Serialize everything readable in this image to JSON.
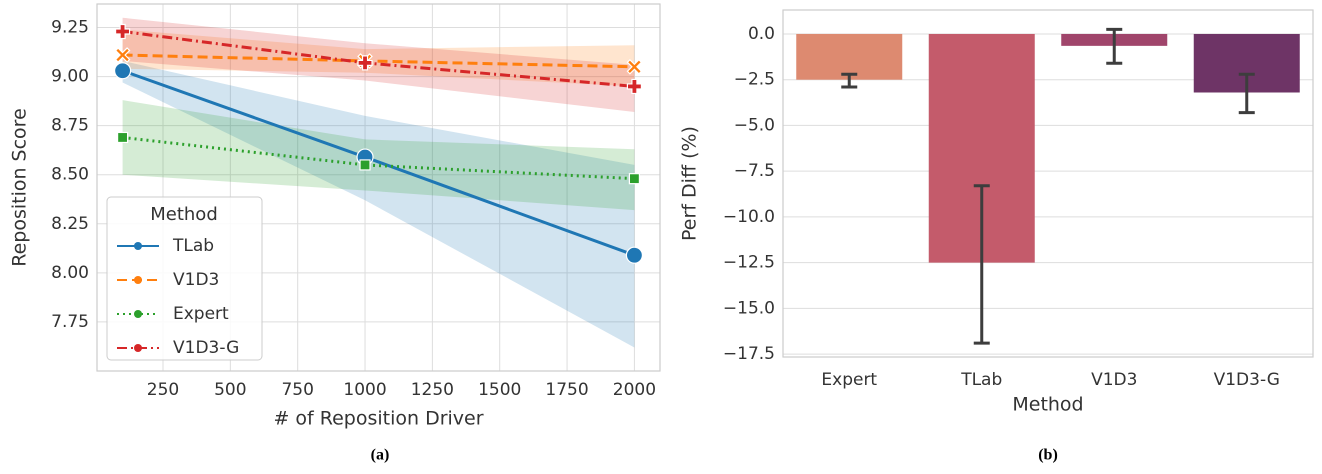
{
  "chart_data": [
    {
      "type": "line",
      "caption": "(a)",
      "x_label": "# of Reposition Driver",
      "y_label": "Reposition Score",
      "x": [
        100,
        1000,
        2000
      ],
      "xlim": [
        5,
        2095
      ],
      "xticks": [
        250,
        500,
        750,
        1000,
        1250,
        1500,
        1750,
        2000
      ],
      "ylim": [
        7.5,
        9.37
      ],
      "yticks": [
        {
          "value": 7.75,
          "label": "7.75"
        },
        {
          "value": 8.0,
          "label": "8.00"
        },
        {
          "value": 8.25,
          "label": "8.25"
        },
        {
          "value": 8.5,
          "label": "8.50"
        },
        {
          "value": 8.75,
          "label": "8.75"
        },
        {
          "value": 9.0,
          "label": "9.00"
        },
        {
          "value": 9.25,
          "label": "9.25"
        }
      ],
      "grid": true,
      "legend_title": "Method",
      "legend": "lower left",
      "series": [
        {
          "name": "TLab",
          "color": "#1f77b4",
          "linestyle": "solid",
          "marker": "o",
          "values": [
            9.03,
            8.59,
            8.09
          ],
          "lower": [
            8.97,
            8.37,
            7.62
          ],
          "upper": [
            9.08,
            8.8,
            8.55
          ]
        },
        {
          "name": "V1D3",
          "color": "#ff7f0e",
          "linestyle": "dashed",
          "marker": "X",
          "values": [
            9.11,
            9.08,
            9.05
          ],
          "lower": [
            9.04,
            9.02,
            8.95
          ],
          "upper": [
            9.24,
            9.14,
            9.16
          ]
        },
        {
          "name": "Expert",
          "color": "#2ca02c",
          "linestyle": "dotted",
          "marker": "s",
          "values": [
            8.69,
            8.55,
            8.48
          ],
          "lower": [
            8.5,
            8.42,
            8.32
          ],
          "upper": [
            8.88,
            8.68,
            8.63
          ]
        },
        {
          "name": "V1D3-G",
          "color": "#d62728",
          "linestyle": "dashdot",
          "marker": "P",
          "values": [
            9.23,
            9.07,
            8.95
          ],
          "lower": [
            9.08,
            8.98,
            8.82
          ],
          "upper": [
            9.3,
            9.17,
            9.06
          ]
        }
      ]
    },
    {
      "type": "bar",
      "caption": "(b)",
      "x_label": "Method",
      "y_label": "Perf Diff (%)",
      "categories": [
        "Expert",
        "TLab",
        "V1D3",
        "V1D3-G"
      ],
      "values": [
        -2.5,
        -12.5,
        -0.65,
        -3.2
      ],
      "ci_low": [
        -2.9,
        -16.9,
        -1.6,
        -4.3
      ],
      "ci_high": [
        -2.2,
        -8.3,
        0.25,
        -2.2
      ],
      "colors": [
        "#dd8a70",
        "#c45b6b",
        "#a0456b",
        "#6e3466"
      ],
      "ylim": [
        -17.66,
        1.31
      ],
      "yticks": [
        {
          "value": -17.5,
          "label": "−17.5"
        },
        {
          "value": -15,
          "label": "−15.0"
        },
        {
          "value": -12.5,
          "label": "−12.5"
        },
        {
          "value": -10,
          "label": "−10.0"
        },
        {
          "value": -7.5,
          "label": "−7.5"
        },
        {
          "value": -5,
          "label": "−5.0"
        },
        {
          "value": -2.5,
          "label": "−2.5"
        },
        {
          "value": 0,
          "label": "0.0"
        }
      ],
      "grid": true
    }
  ]
}
